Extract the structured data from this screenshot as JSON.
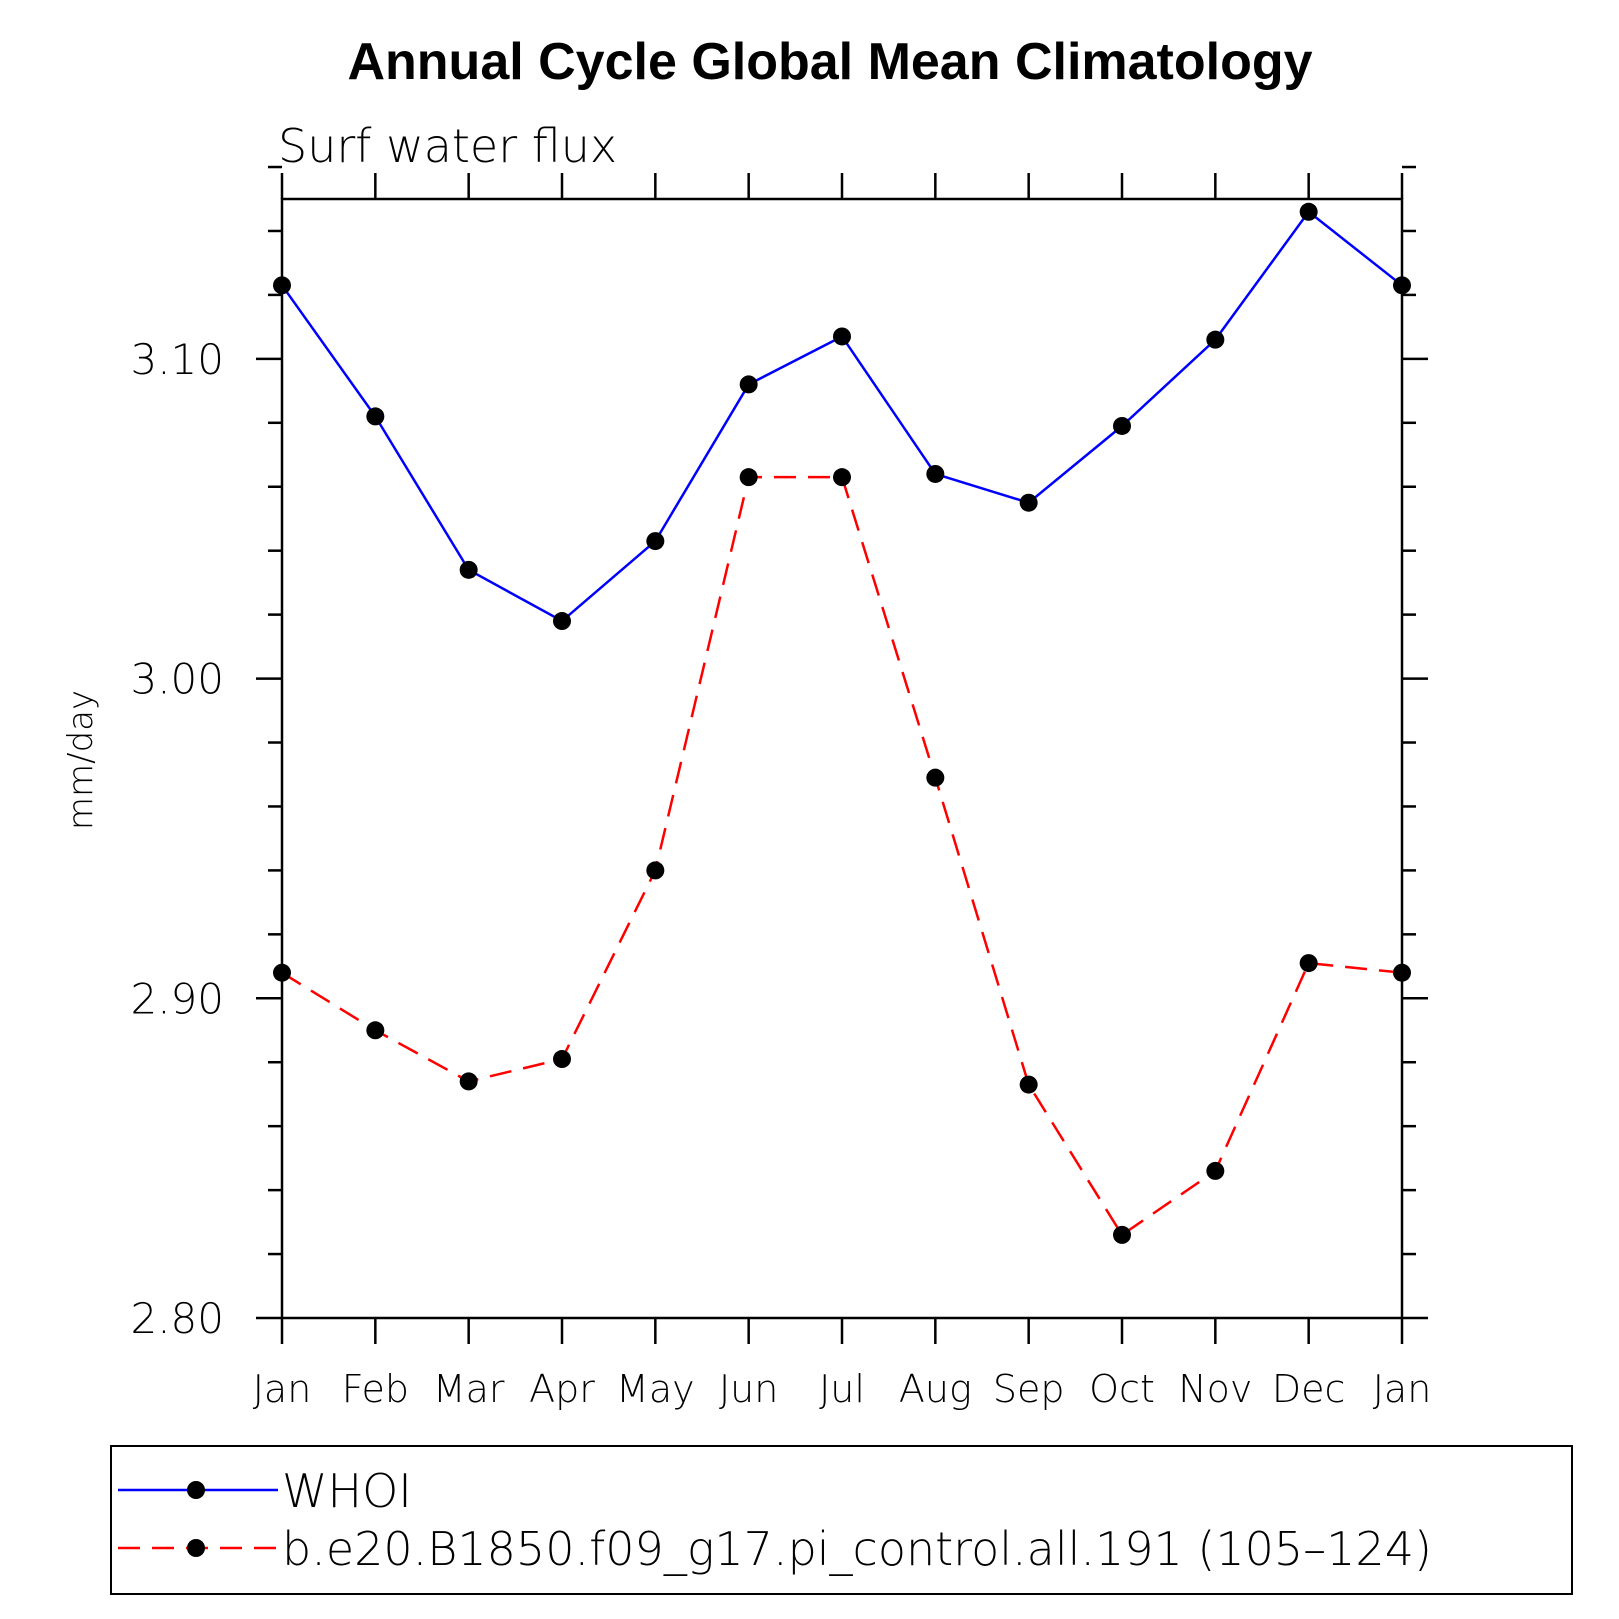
{
  "chart_data": {
    "type": "line",
    "title": "Annual Cycle Global Mean Climatology",
    "subtitle": "Surf water flux",
    "xlabel": "",
    "ylabel": "mm/day",
    "ylim": [
      2.8,
      3.15
    ],
    "ytick_labels": [
      "2.80",
      "2.90",
      "3.00",
      "3.10"
    ],
    "categories": [
      "Jan",
      "Feb",
      "Mar",
      "Apr",
      "May",
      "Jun",
      "Jul",
      "Aug",
      "Sep",
      "Oct",
      "Nov",
      "Dec",
      "Jan"
    ],
    "series": [
      {
        "name": "WHOI",
        "color": "#0000ff",
        "dash": "solid",
        "values": [
          3.123,
          3.082,
          3.034,
          3.018,
          3.043,
          3.092,
          3.107,
          3.064,
          3.055,
          3.079,
          3.106,
          3.146,
          3.123
        ]
      },
      {
        "name": "b.e20.B1850.f09_g17.pi_control.all.191 (105–124)",
        "color": "#ff0000",
        "dash": "dashed",
        "values": [
          2.908,
          2.89,
          2.874,
          2.881,
          2.94,
          3.063,
          3.063,
          2.969,
          2.873,
          2.826,
          2.846,
          2.911,
          2.908
        ]
      }
    ],
    "legend_position": "bottom"
  }
}
